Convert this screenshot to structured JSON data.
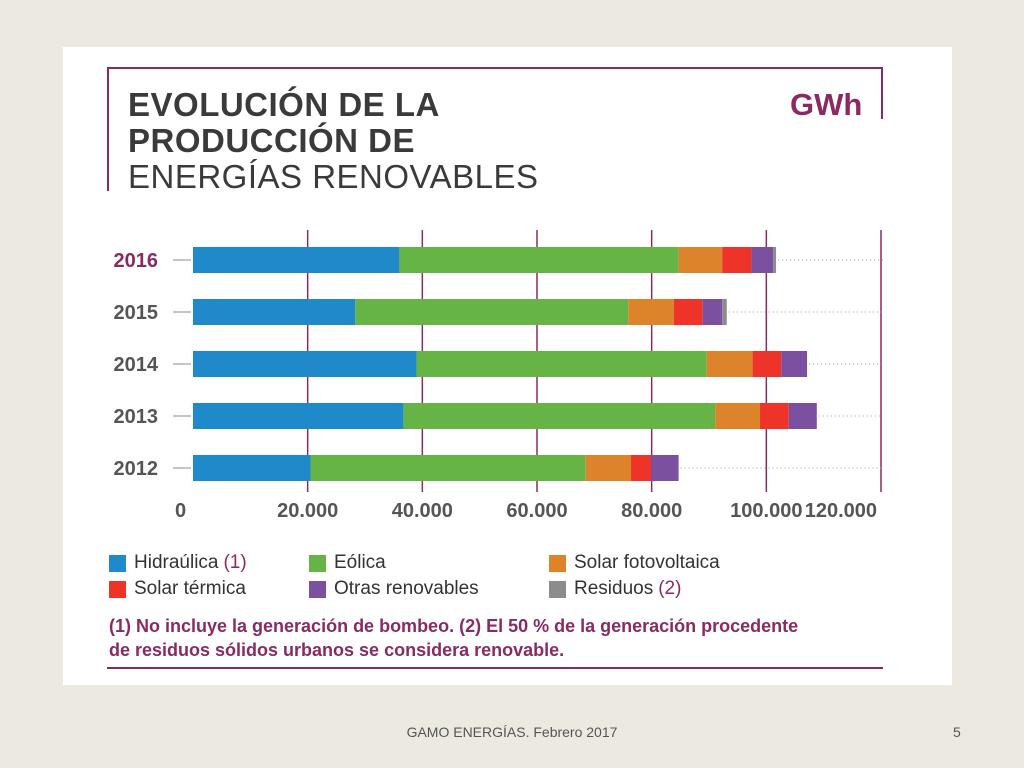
{
  "slide": {
    "footer": "GAMO ENERGÍAS. Febrero 2017",
    "page_number": "5"
  },
  "header": {
    "title_line1": "EVOLUCIÓN DE LA",
    "title_line2": "PRODUCCIÓN DE",
    "title_line3": "ENERGÍAS RENOVABLES",
    "unit": "GWh"
  },
  "colors": {
    "accent": "#8a2a63",
    "hidraulica": "#1f8ac9",
    "eolica": "#66b446",
    "solar_fv": "#dd8329",
    "solar_termica": "#ee3329",
    "otras": "#7c50a1",
    "residuos": "#8c8c8c"
  },
  "chart_data": {
    "type": "bar",
    "orientation": "horizontal",
    "stacked": true,
    "categories": [
      "2016",
      "2015",
      "2014",
      "2013",
      "2012"
    ],
    "series": [
      {
        "name": "Hidraúlica",
        "color": "#1f8ac9",
        "values": [
          36000,
          28300,
          39000,
          36700,
          20500
        ]
      },
      {
        "name": "Eólica",
        "color": "#66b446",
        "values": [
          48700,
          47600,
          50600,
          54400,
          48000
        ]
      },
      {
        "name": "Solar fotovoltaica",
        "color": "#dd8329",
        "values": [
          7600,
          8000,
          8000,
          7800,
          7900
        ]
      },
      {
        "name": "Solar térmica",
        "color": "#ee3329",
        "values": [
          5100,
          5000,
          5000,
          5000,
          3500
        ]
      },
      {
        "name": "Otras renovables",
        "color": "#7c50a1",
        "values": [
          3800,
          3400,
          4500,
          4900,
          4800
        ]
      },
      {
        "name": "Residuos",
        "color": "#8c8c8c",
        "values": [
          500,
          800,
          0,
          0,
          0
        ]
      }
    ],
    "xlim": [
      0,
      120000
    ],
    "xticks": [
      "0",
      "20.000",
      "40.000",
      "60.000",
      "80.000",
      "100.000",
      "120.000"
    ],
    "grid": true,
    "legend_position": "bottom"
  },
  "legend": {
    "items": [
      {
        "label": "Hidraúlica",
        "ref": "(1)",
        "color": "#1f8ac9"
      },
      {
        "label": "Eólica",
        "ref": "",
        "color": "#66b446"
      },
      {
        "label": "Solar fotovoltaica",
        "ref": "",
        "color": "#dd8329"
      },
      {
        "label": "Solar térmica",
        "ref": "",
        "color": "#ee3329"
      },
      {
        "label": "Otras renovables",
        "ref": "",
        "color": "#7c50a1"
      },
      {
        "label": "Residuos",
        "ref": "(2)",
        "color": "#8c8c8c"
      }
    ]
  },
  "footnote": {
    "line1": "(1) No incluye la generación de bombeo. (2) El 50 % de la generación procedente",
    "line2": "de residuos sólidos urbanos se considera renovable."
  }
}
